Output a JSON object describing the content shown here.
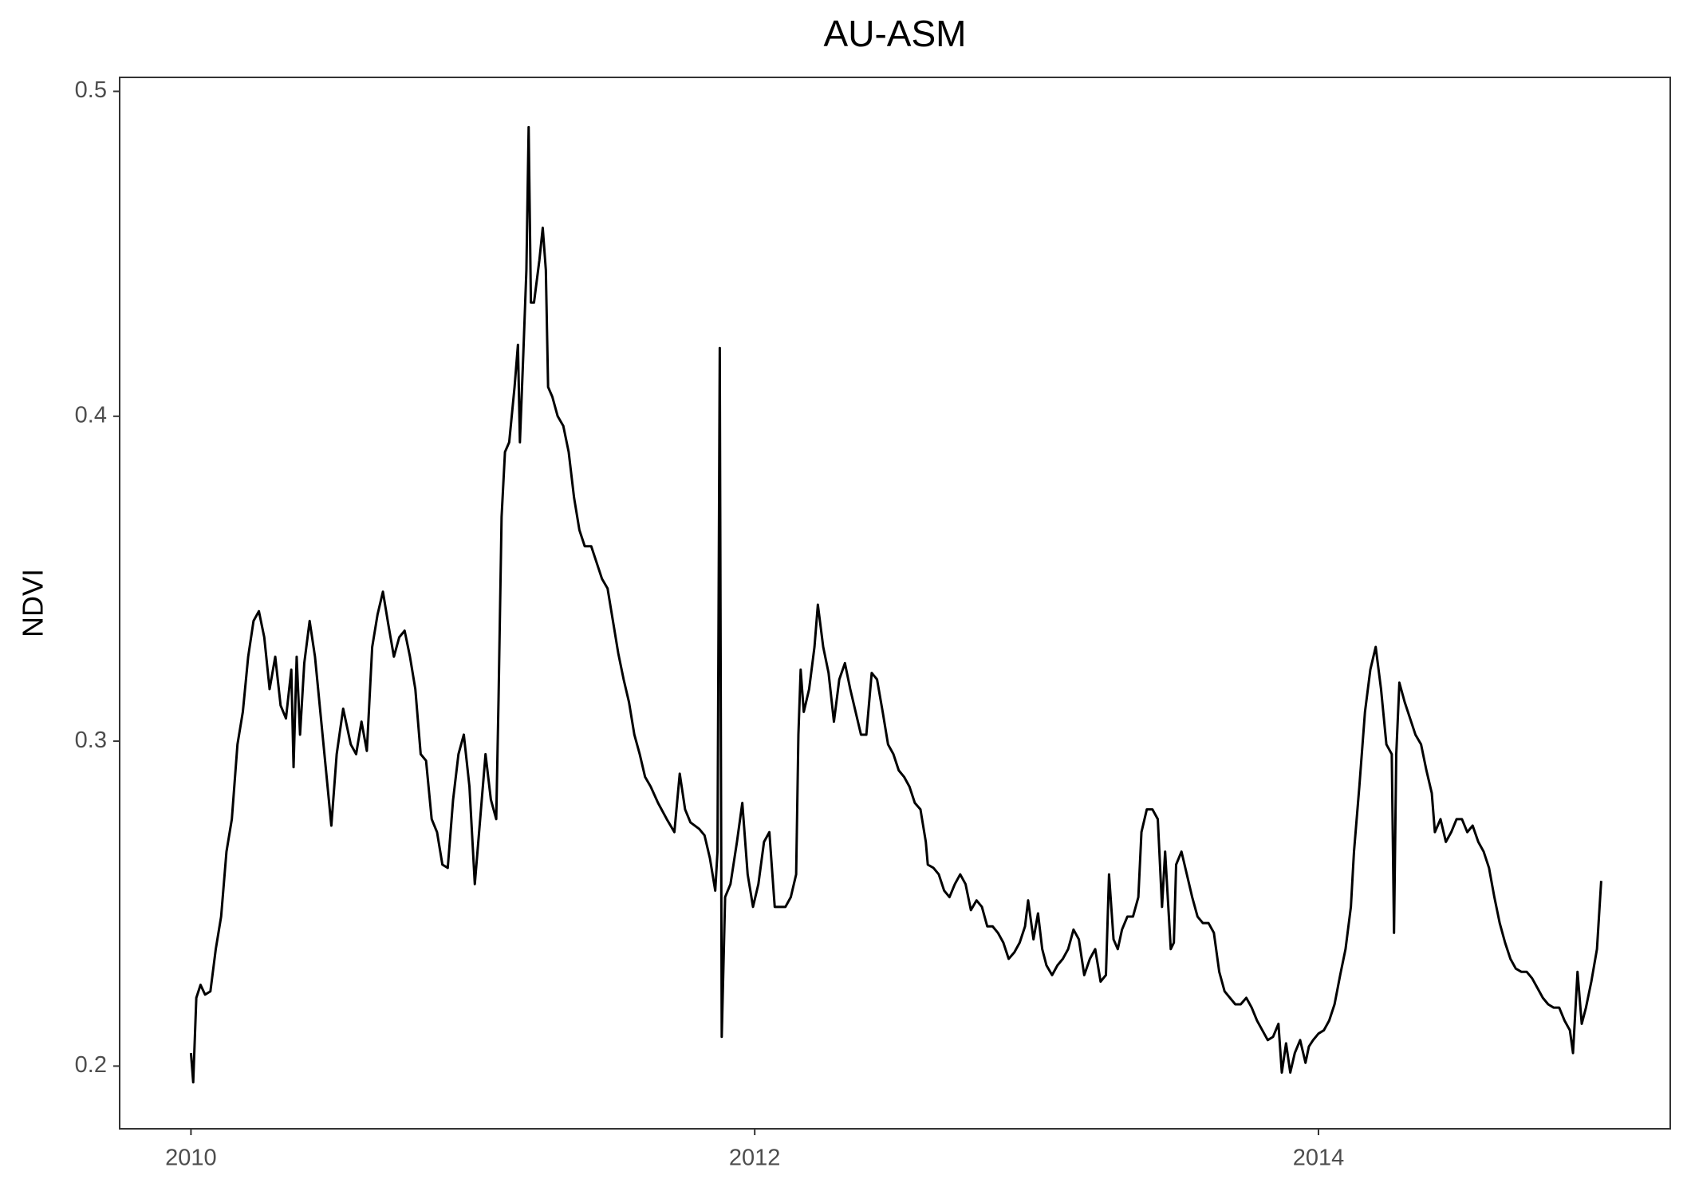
{
  "chart_data": {
    "type": "line",
    "title": "AU-ASM",
    "ylabel": "NDVI",
    "color": "#000000",
    "xlim": [
      2009.747,
      2015.248
    ],
    "xticks": [
      2010,
      2012,
      2014
    ],
    "ylim": [
      0.1807,
      0.5043
    ],
    "yticks": [
      0.2,
      0.3,
      0.4,
      0.5
    ],
    "grid": false,
    "x": [
      2010.0,
      2010.008,
      2010.019,
      2010.034,
      2010.05,
      2010.069,
      2010.088,
      2010.107,
      2010.126,
      2010.145,
      2010.165,
      2010.184,
      2010.203,
      2010.222,
      2010.241,
      2010.26,
      2010.279,
      2010.299,
      2010.318,
      2010.337,
      2010.356,
      2010.364,
      2010.375,
      2010.387,
      2010.402,
      2010.421,
      2010.44,
      2010.459,
      2010.478,
      2010.498,
      2010.517,
      2010.54,
      2010.567,
      2010.586,
      2010.605,
      2010.624,
      2010.643,
      2010.662,
      2010.681,
      2010.7,
      2010.72,
      2010.739,
      2010.758,
      2010.777,
      2010.796,
      2010.815,
      2010.834,
      2010.854,
      2010.873,
      2010.892,
      2010.911,
      2010.93,
      2010.949,
      2010.968,
      2010.988,
      2011.007,
      2011.026,
      2011.045,
      2011.064,
      2011.083,
      2011.091,
      2011.102,
      2011.114,
      2011.129,
      2011.148,
      2011.16,
      2011.167,
      2011.179,
      2011.19,
      2011.198,
      2011.206,
      2011.217,
      2011.236,
      2011.248,
      2011.259,
      2011.267,
      2011.282,
      2011.301,
      2011.321,
      2011.34,
      2011.359,
      2011.378,
      2011.397,
      2011.42,
      2011.439,
      2011.458,
      2011.478,
      2011.497,
      2011.516,
      2011.535,
      2011.554,
      2011.573,
      2011.592,
      2011.611,
      2011.631,
      2011.657,
      2011.688,
      2011.715,
      2011.734,
      2011.753,
      2011.772,
      2011.803,
      2011.822,
      2011.841,
      2011.86,
      2011.868,
      2011.876,
      2011.883,
      2011.895,
      2011.914,
      2011.937,
      2011.956,
      2011.975,
      2011.994,
      2012.013,
      2012.033,
      2012.052,
      2012.071,
      2012.09,
      2012.109,
      2012.128,
      2012.147,
      2012.155,
      2012.163,
      2012.174,
      2012.193,
      2012.212,
      2012.224,
      2012.243,
      2012.262,
      2012.281,
      2012.3,
      2012.32,
      2012.339,
      2012.358,
      2012.377,
      2012.396,
      2012.415,
      2012.434,
      2012.454,
      2012.473,
      2012.492,
      2012.511,
      2012.53,
      2012.549,
      2012.568,
      2012.588,
      2012.607,
      2012.614,
      2012.634,
      2012.653,
      2012.672,
      2012.691,
      2012.71,
      2012.729,
      2012.748,
      2012.767,
      2012.787,
      2012.806,
      2012.825,
      2012.844,
      2012.863,
      2012.882,
      2012.901,
      2012.921,
      2012.94,
      2012.959,
      2012.97,
      2012.989,
      2013.005,
      2013.02,
      2013.035,
      2013.055,
      2013.074,
      2013.093,
      2013.112,
      2013.131,
      2013.15,
      2013.169,
      2013.189,
      2013.208,
      2013.227,
      2013.246,
      2013.257,
      2013.273,
      2013.288,
      2013.303,
      2013.322,
      2013.342,
      2013.361,
      2013.372,
      2013.391,
      2013.411,
      2013.43,
      2013.445,
      2013.456,
      2013.476,
      2013.487,
      2013.495,
      2013.514,
      2013.533,
      2013.552,
      2013.571,
      2013.59,
      2013.61,
      2013.629,
      2013.648,
      2013.667,
      2013.686,
      2013.705,
      2013.724,
      2013.744,
      2013.763,
      2013.782,
      2013.801,
      2013.82,
      2013.839,
      2013.858,
      2013.87,
      2013.885,
      2013.9,
      2013.916,
      2013.935,
      2013.954,
      2013.966,
      2013.981,
      2014.0,
      2014.019,
      2014.038,
      2014.057,
      2014.077,
      2014.096,
      2014.115,
      2014.126,
      2014.145,
      2014.165,
      2014.184,
      2014.203,
      2014.222,
      2014.241,
      2014.26,
      2014.268,
      2014.276,
      2014.287,
      2014.306,
      2014.325,
      2014.344,
      2014.364,
      2014.383,
      2014.402,
      2014.413,
      2014.433,
      2014.452,
      2014.471,
      2014.49,
      2014.509,
      2014.528,
      2014.547,
      2014.567,
      2014.586,
      2014.605,
      2014.624,
      2014.643,
      2014.662,
      2014.681,
      2014.7,
      2014.72,
      2014.739,
      2014.758,
      2014.777,
      2014.796,
      2014.815,
      2014.834,
      2014.854,
      2014.873,
      2014.892,
      2014.903,
      2014.919,
      2014.934,
      2014.949,
      2014.968,
      2014.988,
      2015.003
    ],
    "values": [
      0.204,
      0.195,
      0.221,
      0.225,
      0.222,
      0.223,
      0.236,
      0.246,
      0.266,
      0.276,
      0.299,
      0.309,
      0.326,
      0.337,
      0.34,
      0.332,
      0.316,
      0.326,
      0.311,
      0.307,
      0.322,
      0.292,
      0.326,
      0.302,
      0.324,
      0.337,
      0.326,
      0.309,
      0.292,
      0.274,
      0.296,
      0.31,
      0.299,
      0.296,
      0.306,
      0.297,
      0.329,
      0.339,
      0.346,
      0.336,
      0.326,
      0.332,
      0.334,
      0.326,
      0.316,
      0.296,
      0.294,
      0.276,
      0.272,
      0.262,
      0.261,
      0.282,
      0.296,
      0.302,
      0.286,
      0.256,
      0.276,
      0.296,
      0.282,
      0.276,
      0.312,
      0.369,
      0.389,
      0.392,
      0.409,
      0.422,
      0.392,
      0.419,
      0.445,
      0.489,
      0.435,
      0.435,
      0.448,
      0.458,
      0.445,
      0.409,
      0.406,
      0.4,
      0.397,
      0.389,
      0.375,
      0.365,
      0.36,
      0.36,
      0.355,
      0.35,
      0.347,
      0.337,
      0.327,
      0.319,
      0.312,
      0.302,
      0.296,
      0.289,
      0.286,
      0.281,
      0.276,
      0.272,
      0.29,
      0.279,
      0.275,
      0.273,
      0.271,
      0.264,
      0.254,
      0.266,
      0.421,
      0.209,
      0.252,
      0.256,
      0.269,
      0.281,
      0.259,
      0.249,
      0.256,
      0.269,
      0.272,
      0.249,
      0.249,
      0.249,
      0.252,
      0.259,
      0.302,
      0.322,
      0.309,
      0.316,
      0.329,
      0.342,
      0.329,
      0.321,
      0.306,
      0.319,
      0.324,
      0.316,
      0.309,
      0.302,
      0.302,
      0.321,
      0.319,
      0.309,
      0.299,
      0.296,
      0.291,
      0.289,
      0.286,
      0.281,
      0.279,
      0.269,
      0.262,
      0.261,
      0.259,
      0.254,
      0.252,
      0.256,
      0.259,
      0.256,
      0.248,
      0.251,
      0.249,
      0.243,
      0.243,
      0.241,
      0.238,
      0.233,
      0.235,
      0.238,
      0.243,
      0.251,
      0.239,
      0.247,
      0.236,
      0.231,
      0.228,
      0.231,
      0.233,
      0.236,
      0.242,
      0.239,
      0.228,
      0.233,
      0.236,
      0.226,
      0.228,
      0.259,
      0.239,
      0.236,
      0.242,
      0.246,
      0.246,
      0.252,
      0.272,
      0.279,
      0.279,
      0.276,
      0.249,
      0.266,
      0.236,
      0.238,
      0.262,
      0.266,
      0.259,
      0.252,
      0.246,
      0.244,
      0.244,
      0.241,
      0.229,
      0.223,
      0.221,
      0.219,
      0.219,
      0.221,
      0.218,
      0.214,
      0.211,
      0.208,
      0.209,
      0.213,
      0.198,
      0.207,
      0.198,
      0.204,
      0.208,
      0.201,
      0.206,
      0.208,
      0.21,
      0.211,
      0.214,
      0.219,
      0.228,
      0.236,
      0.249,
      0.266,
      0.286,
      0.309,
      0.322,
      0.329,
      0.316,
      0.299,
      0.296,
      0.241,
      0.296,
      0.318,
      0.312,
      0.307,
      0.302,
      0.299,
      0.291,
      0.284,
      0.272,
      0.276,
      0.269,
      0.272,
      0.276,
      0.276,
      0.272,
      0.274,
      0.269,
      0.266,
      0.261,
      0.252,
      0.244,
      0.238,
      0.233,
      0.23,
      0.229,
      0.229,
      0.227,
      0.224,
      0.221,
      0.219,
      0.218,
      0.218,
      0.214,
      0.211,
      0.204,
      0.229,
      0.213,
      0.218,
      0.226,
      0.236,
      0.257
    ]
  }
}
